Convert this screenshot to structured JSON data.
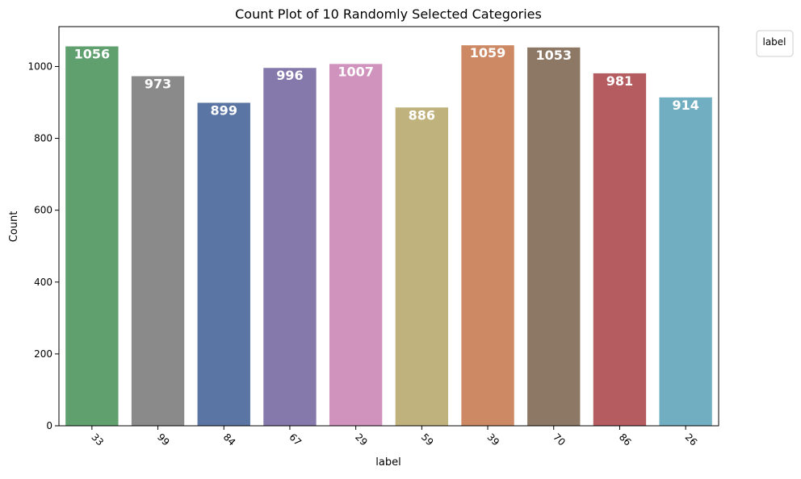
{
  "chart_data": {
    "type": "bar",
    "title": "Count Plot of 10 Randomly Selected Categories",
    "xlabel": "label",
    "ylabel": "Count",
    "categories": [
      "33",
      "99",
      "84",
      "67",
      "29",
      "59",
      "39",
      "70",
      "86",
      "26"
    ],
    "values": [
      1056,
      973,
      899,
      996,
      1007,
      886,
      1059,
      1053,
      981,
      914
    ],
    "colors": [
      "#5fa06e",
      "#8a8a8a",
      "#5a74a3",
      "#8579ab",
      "#d093bd",
      "#c0b27c",
      "#cc8963",
      "#8c7865",
      "#b45c5f",
      "#72aec1"
    ],
    "ylim": [
      0,
      1111
    ],
    "yticks": [
      "0",
      "200",
      "400",
      "600",
      "800",
      "1000"
    ],
    "legend": {
      "title": "label",
      "placement": "outside-top-right"
    },
    "grid": false
  }
}
